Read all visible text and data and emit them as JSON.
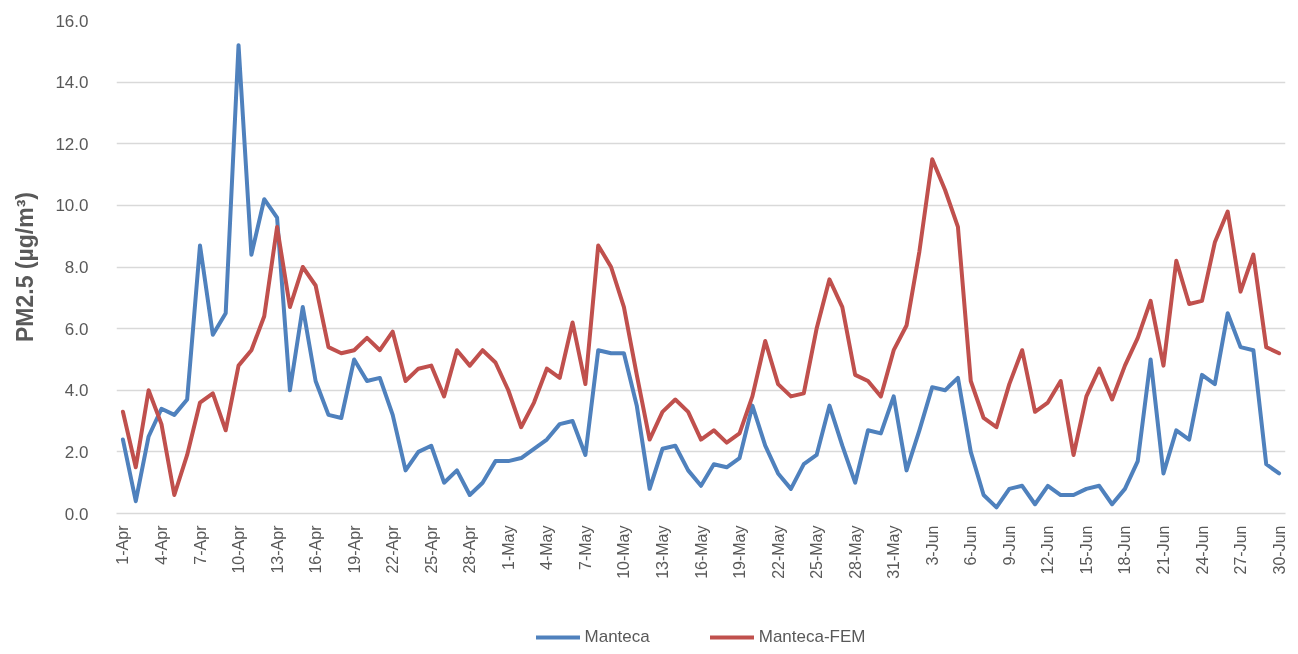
{
  "chart_data": {
    "type": "line",
    "ylabel": "PM2.5 (µg/m³)",
    "categories": [
      "1-Apr",
      null,
      null,
      "4-Apr",
      null,
      null,
      "7-Apr",
      null,
      null,
      "10-Apr",
      null,
      null,
      "13-Apr",
      null,
      null,
      "16-Apr",
      null,
      null,
      "19-Apr",
      null,
      null,
      "22-Apr",
      null,
      null,
      "25-Apr",
      null,
      null,
      "28-Apr",
      null,
      null,
      "1-May",
      null,
      null,
      "4-May",
      null,
      null,
      "7-May",
      null,
      null,
      "10-May",
      null,
      null,
      "13-May",
      null,
      null,
      "16-May",
      null,
      null,
      "19-May",
      null,
      null,
      "22-May",
      null,
      null,
      "25-May",
      null,
      null,
      "28-May",
      null,
      null,
      "31-May",
      null,
      null,
      "3-Jun",
      null,
      null,
      "6-Jun",
      null,
      null,
      "9-Jun",
      null,
      null,
      "12-Jun",
      null,
      null,
      "15-Jun",
      null,
      null,
      "18-Jun",
      null,
      null,
      "21-Jun",
      null,
      null,
      "24-Jun",
      null,
      null,
      "27-Jun",
      null,
      null,
      "30-Jun"
    ],
    "series": [
      {
        "name": "Manteca",
        "color": "#4f81bd",
        "values": [
          2.4,
          0.4,
          2.5,
          3.4,
          3.2,
          3.7,
          8.7,
          5.8,
          6.5,
          15.2,
          8.4,
          10.2,
          9.6,
          4.0,
          6.7,
          4.3,
          3.2,
          3.1,
          5.0,
          4.3,
          4.4,
          3.2,
          1.4,
          2.0,
          2.2,
          1.0,
          1.4,
          0.6,
          1.0,
          1.7,
          1.7,
          1.8,
          2.1,
          2.4,
          2.9,
          3.0,
          1.9,
          5.3,
          5.2,
          5.2,
          3.5,
          0.8,
          2.1,
          2.2,
          1.4,
          0.9,
          1.6,
          1.5,
          1.8,
          3.5,
          2.2,
          1.3,
          0.8,
          1.6,
          1.9,
          3.5,
          2.2,
          1.0,
          2.7,
          2.6,
          3.8,
          1.4,
          2.7,
          4.1,
          4.0,
          4.4,
          2.0,
          0.6,
          0.2,
          0.8,
          0.9,
          0.3,
          0.9,
          0.6,
          0.6,
          0.8,
          0.9,
          0.3,
          0.8,
          1.7,
          5.0,
          1.3,
          2.7,
          2.4,
          4.5,
          4.2,
          6.5,
          5.4,
          5.3,
          1.6,
          1.3
        ]
      },
      {
        "name": "Manteca-FEM",
        "color": "#c0504d",
        "values": [
          3.3,
          1.5,
          4.0,
          2.9,
          0.6,
          1.9,
          3.6,
          3.9,
          2.7,
          4.8,
          5.3,
          6.4,
          9.3,
          6.7,
          8.0,
          7.4,
          5.4,
          5.2,
          5.3,
          5.7,
          5.3,
          5.9,
          4.3,
          4.7,
          4.8,
          3.8,
          5.3,
          4.8,
          5.3,
          4.9,
          4.0,
          2.8,
          3.6,
          4.7,
          4.4,
          6.2,
          4.2,
          8.7,
          8.0,
          6.7,
          4.5,
          2.4,
          3.3,
          3.7,
          3.3,
          2.4,
          2.7,
          2.3,
          2.6,
          3.8,
          5.6,
          4.2,
          3.8,
          3.9,
          6.0,
          7.6,
          6.7,
          4.5,
          4.3,
          3.8,
          5.3,
          6.1,
          8.5,
          11.5,
          10.5,
          9.3,
          4.3,
          3.1,
          2.8,
          4.2,
          5.3,
          3.3,
          3.6,
          4.3,
          1.9,
          3.8,
          4.7,
          3.7,
          4.8,
          5.7,
          6.9,
          4.8,
          8.2,
          6.8,
          6.9,
          8.8,
          9.8,
          7.2,
          8.4,
          5.4,
          5.2
        ]
      }
    ],
    "ylim": [
      0,
      16
    ],
    "yticks": [
      {
        "value": 0,
        "label": "0.0"
      },
      {
        "value": 2,
        "label": "2.0"
      },
      {
        "value": 4,
        "label": "4.0"
      },
      {
        "value": 6,
        "label": "6.0"
      },
      {
        "value": 8,
        "label": "8.0"
      },
      {
        "value": 10,
        "label": "10.0"
      },
      {
        "value": 12,
        "label": "12.0"
      },
      {
        "value": 14,
        "label": "14.0"
      },
      {
        "value": 16,
        "label": "16.0"
      }
    ],
    "grid": "y",
    "legend": "bottom"
  }
}
